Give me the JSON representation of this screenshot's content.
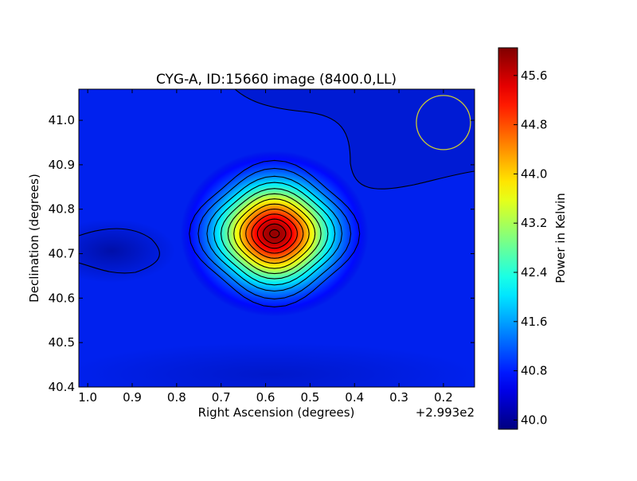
{
  "chart_data": {
    "type": "heatmap",
    "title": "CYG-A, ID:15660 image (8400.0,LL)",
    "xlabel": "Right Ascension (degrees)",
    "ylabel": "Declination (degrees)",
    "x_offset_label": "+2.993e2",
    "x_reversed": true,
    "xlim": [
      1.02,
      0.13
    ],
    "ylim": [
      40.4,
      41.07
    ],
    "xticks": [
      1.0,
      0.9,
      0.8,
      0.7,
      0.6,
      0.5,
      0.4,
      0.3,
      0.2
    ],
    "xtick_labels": [
      "1.0",
      "0.9",
      "0.8",
      "0.7",
      "0.6",
      "0.5",
      "0.4",
      "0.3",
      "0.2"
    ],
    "yticks": [
      40.4,
      40.5,
      40.6,
      40.7,
      40.8,
      40.9,
      41.0
    ],
    "ytick_labels": [
      "40.4",
      "40.5",
      "40.6",
      "40.7",
      "40.8",
      "40.9",
      "41.0"
    ],
    "colormap": "jet",
    "colorbar": {
      "label": "Power in Kelvin",
      "min": 39.85,
      "max": 46.05,
      "ticks": [
        40.0,
        40.8,
        41.6,
        42.4,
        43.2,
        44.0,
        44.8,
        45.6
      ],
      "tick_labels": [
        "40.0",
        "40.8",
        "41.6",
        "42.4",
        "43.2",
        "44.0",
        "44.8",
        "45.6"
      ]
    },
    "background_level": 40.25,
    "sources": [
      {
        "name": "CYG-A",
        "ra_offset": 0.58,
        "dec": 40.745,
        "peak": 45.95
      }
    ],
    "beam": {
      "ra_offset": 0.2,
      "dec": 40.995,
      "color": "#cccc33"
    },
    "contours": true,
    "grid": false
  }
}
